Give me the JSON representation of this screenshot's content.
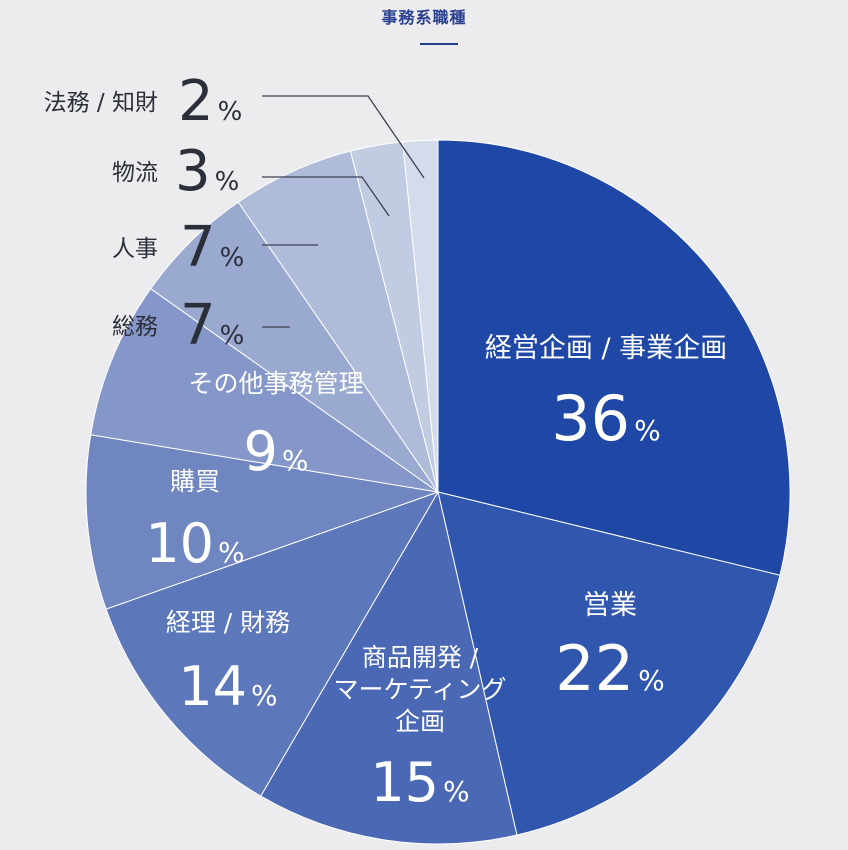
{
  "header": {
    "title": "事務系職種"
  },
  "chart_data": {
    "type": "pie",
    "title": "事務系職種",
    "unit": "%",
    "slices": [
      {
        "label": "経営企画 / 事業企画",
        "value": 36,
        "color": "#1f48a6"
      },
      {
        "label": "営業",
        "value": 22,
        "color": "#3056ae"
      },
      {
        "label": "商品開発 / マーケティング企画",
        "label_lines": [
          "商品開発 /",
          "マーケティング",
          "企画"
        ],
        "value": 15,
        "color": "#4a68b4"
      },
      {
        "label": "経理 / 財務",
        "value": 14,
        "color": "#5c78ba"
      },
      {
        "label": "購買",
        "value": 10,
        "color": "#6f86c0"
      },
      {
        "label": "その他事務管理",
        "value": 9,
        "color": "#8597c8"
      },
      {
        "label": "総務",
        "value": 7,
        "color": "#9aa9d0"
      },
      {
        "label": "人事",
        "value": 7,
        "color": "#aebbd9"
      },
      {
        "label": "物流",
        "value": 3,
        "color": "#c1cbe2"
      },
      {
        "label": "法務 / 知財",
        "value": 2,
        "color": "#d4dbea"
      }
    ]
  }
}
